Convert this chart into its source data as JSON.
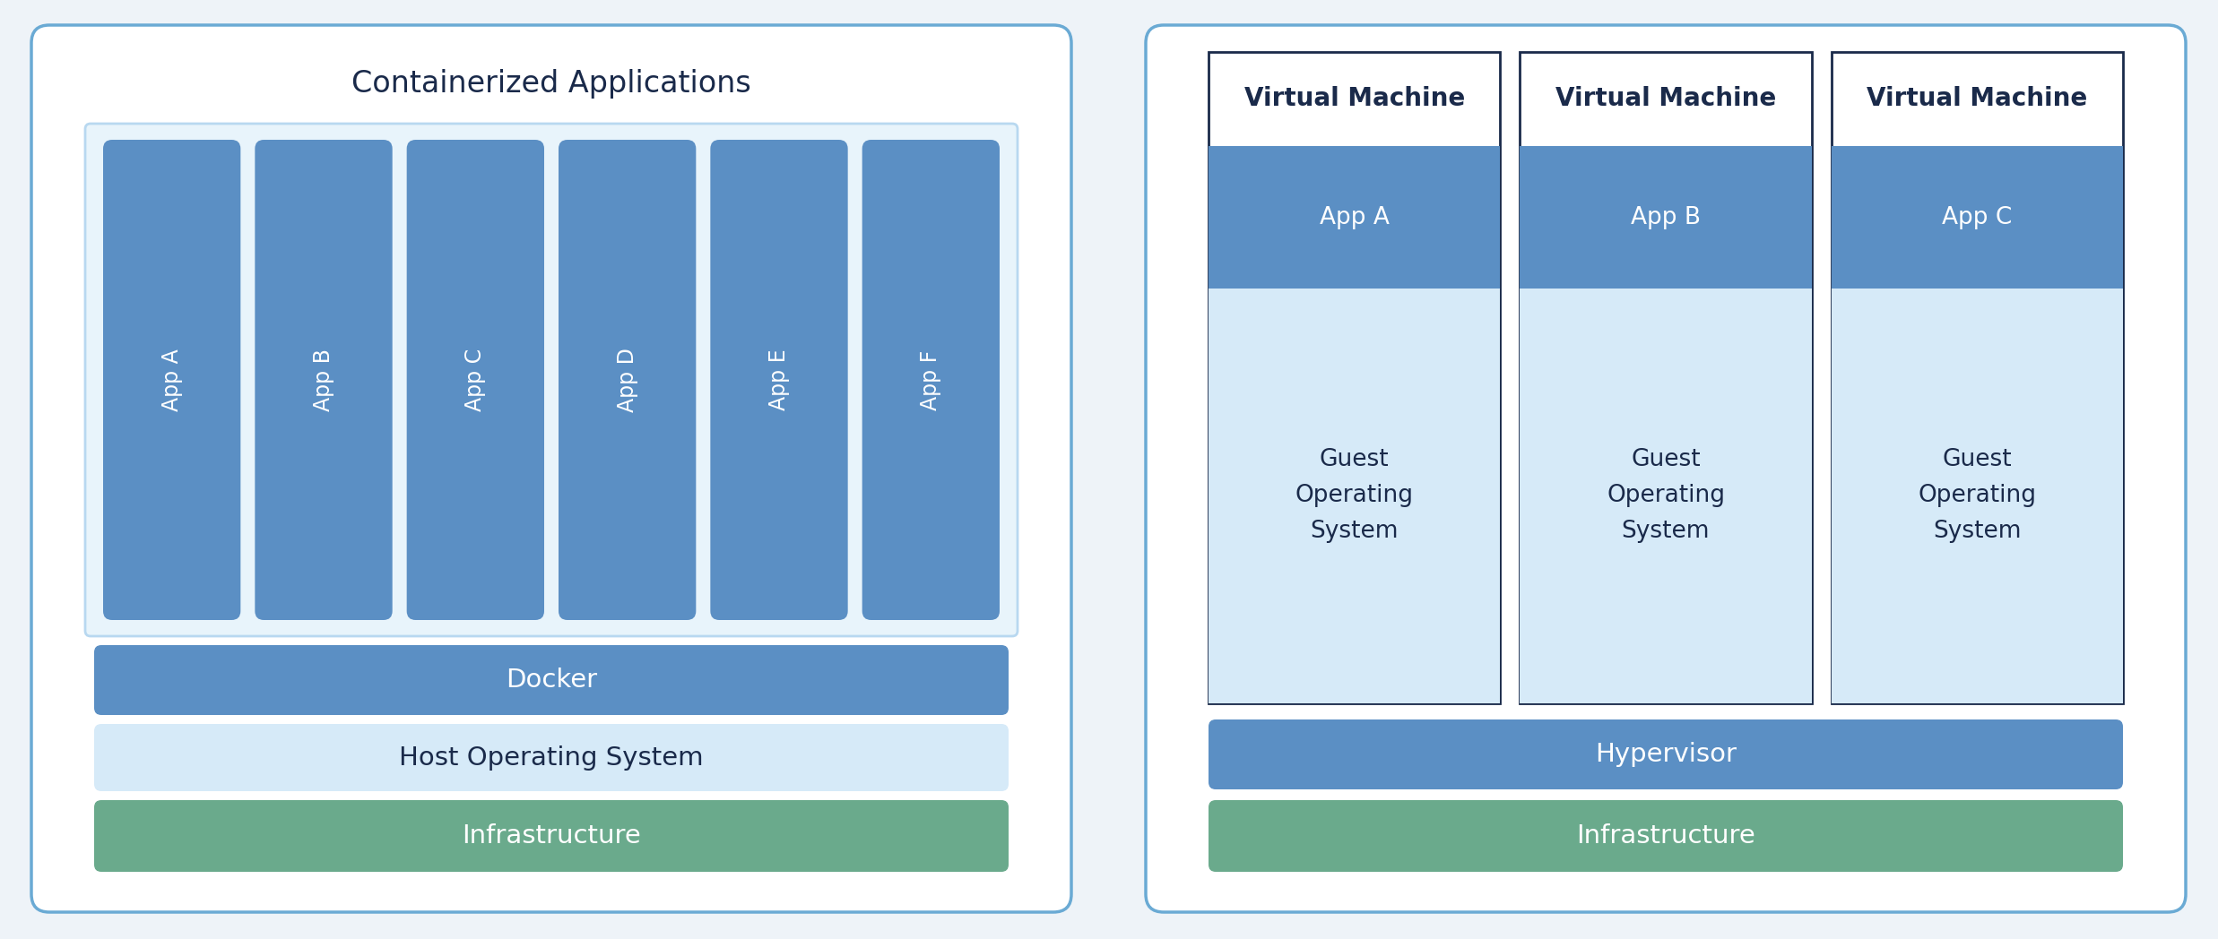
{
  "bg_color": "#eef3f8",
  "panel_bg": "#ffffff",
  "panel_border": "#6aaad4",
  "blue_dark": "#5b8fc4",
  "blue_light": "#d6eaf8",
  "blue_wrapper_border": "#b8d8f0",
  "green": "#6aaa8c",
  "white": "#ffffff",
  "text_dark": "#1a2a4a",
  "text_white": "#ffffff",
  "left_title": "Containerized Applications",
  "left_apps": [
    "App A",
    "App B",
    "App C",
    "App D",
    "App E",
    "App F"
  ],
  "left_docker": "Docker",
  "left_hos": "Host Operating System",
  "left_infra": "Infrastructure",
  "right_vm_label": "Virtual Machine",
  "right_apps": [
    "App A",
    "App B",
    "App C"
  ],
  "right_guest_os": "Guest\nOperating\nSystem",
  "right_hypervisor": "Hypervisor",
  "right_infra": "Infrastructure",
  "fig_w": 24.74,
  "fig_h": 10.48,
  "dpi": 100
}
